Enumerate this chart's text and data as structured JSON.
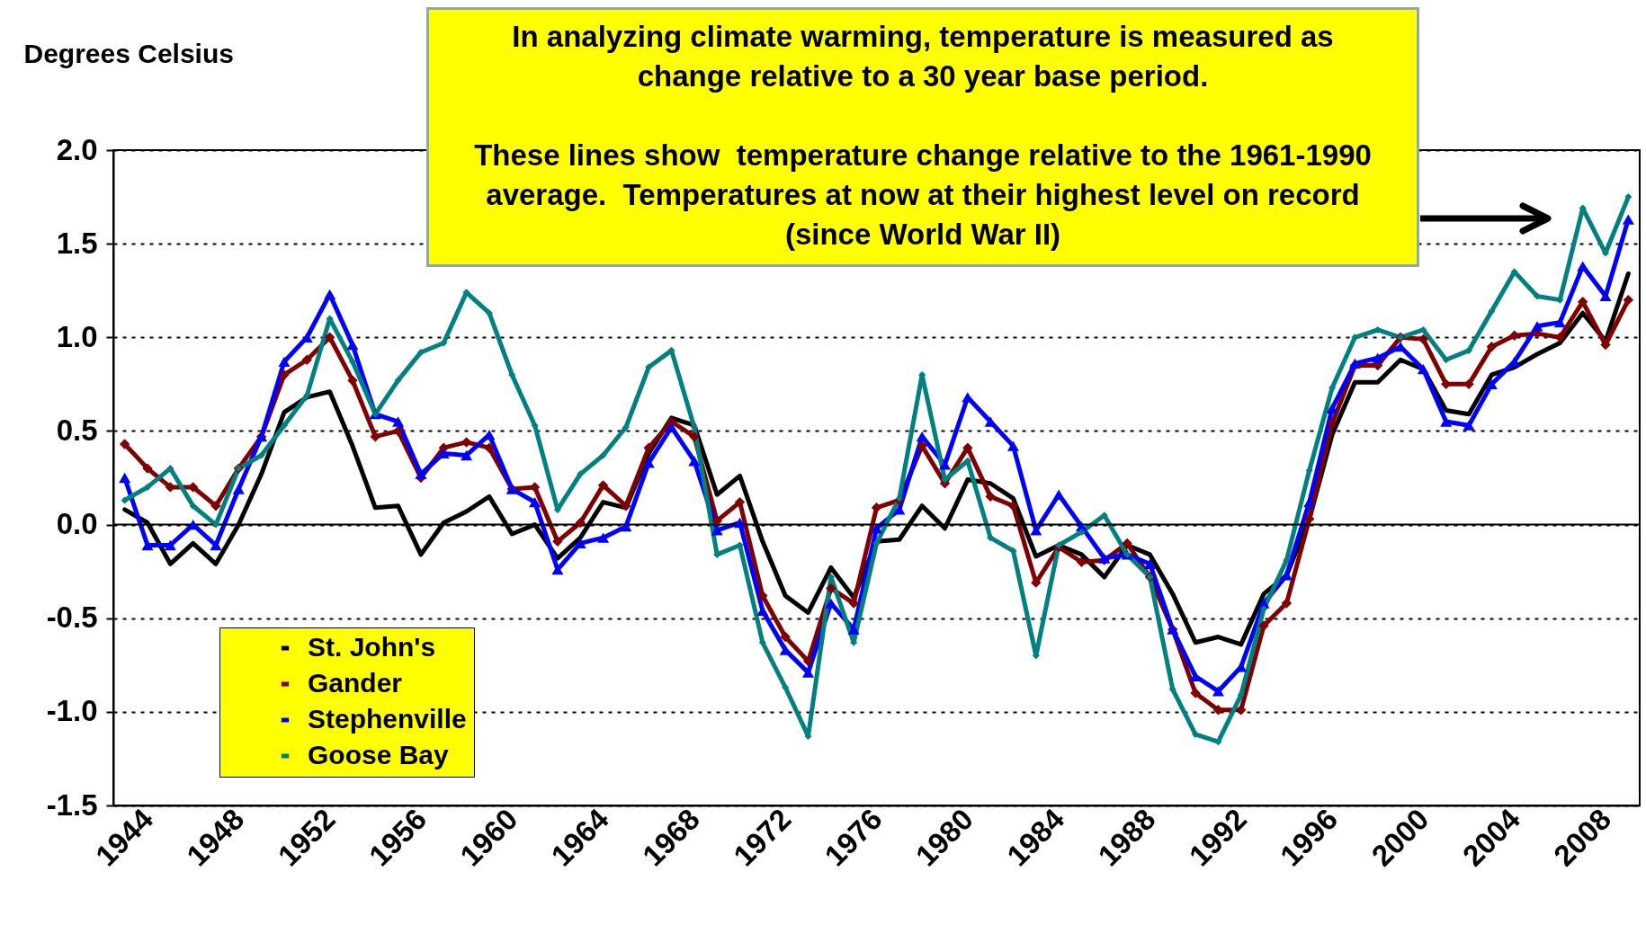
{
  "chart_data": {
    "type": "line",
    "ylabel": "Degrees Celsius",
    "annotations": [
      "In analyzing climate warming, temperature is measured as change relative to a 30 year base period.",
      "These lines show  temperature change relative to the 1961-1990 average.  Temperatures at now at their highest level on record (since World War II)"
    ],
    "categories": [
      "1944",
      null,
      null,
      null,
      "1948",
      null,
      null,
      null,
      "1952",
      null,
      null,
      null,
      "1956",
      null,
      null,
      null,
      "1960",
      null,
      null,
      null,
      "1964",
      null,
      null,
      null,
      "1968",
      null,
      null,
      null,
      "1972",
      null,
      null,
      null,
      "1976",
      null,
      null,
      null,
      "1980",
      null,
      null,
      null,
      "1984",
      null,
      null,
      null,
      "1988",
      null,
      null,
      null,
      "1992",
      null,
      null,
      null,
      "1996",
      null,
      null,
      null,
      "2000",
      null,
      null,
      null,
      "2004",
      null,
      null,
      null,
      "2008",
      null,
      null
    ],
    "series": [
      {
        "name": "St. John's",
        "color": "#000000",
        "marker": "none",
        "values": [
          0.08,
          0.01,
          -0.21,
          -0.1,
          -0.21,
          0,
          0.27,
          0.6,
          0.68,
          0.71,
          0.42,
          0.09,
          0.1,
          -0.16,
          0.01,
          0.07,
          0.15,
          -0.05,
          0,
          -0.18,
          -0.07,
          0.12,
          0.09,
          0.38,
          0.57,
          0.53,
          0.16,
          0.26,
          -0.09,
          -0.38,
          -0.47,
          -0.23,
          -0.39,
          -0.09,
          -0.08,
          0.1,
          -0.02,
          0.24,
          0.22,
          0.14,
          -0.17,
          -0.11,
          -0.16,
          -0.28,
          -0.11,
          -0.16,
          -0.37,
          -0.63,
          -0.6,
          -0.64,
          -0.37,
          -0.27,
          0.03,
          0.48,
          0.76,
          0.76,
          0.88,
          0.83,
          0.61,
          0.59,
          0.8,
          0.84,
          0.91,
          0.97,
          1.13,
          0.98,
          1.34
        ]
      },
      {
        "name": "Gander",
        "color": "#800000",
        "marker": "diamond",
        "values": [
          0.43,
          0.3,
          0.2,
          0.2,
          0.1,
          0.3,
          0.47,
          0.8,
          0.88,
          1.0,
          0.77,
          0.47,
          0.5,
          0.25,
          0.41,
          0.44,
          0.41,
          0.19,
          0.2,
          -0.09,
          0.01,
          0.21,
          0.1,
          0.41,
          0.55,
          0.47,
          0.02,
          0.12,
          -0.38,
          -0.6,
          -0.73,
          -0.34,
          -0.42,
          0.09,
          0.13,
          0.42,
          0.22,
          0.41,
          0.15,
          0.1,
          -0.31,
          -0.12,
          -0.2,
          -0.19,
          -0.1,
          -0.28,
          -0.56,
          -0.9,
          -0.99,
          -0.99,
          -0.54,
          -0.42,
          0.03,
          0.54,
          0.85,
          0.85,
          1.0,
          0.99,
          0.75,
          0.75,
          0.95,
          1.01,
          1.02,
          1.0,
          1.19,
          0.96,
          1.2
        ]
      },
      {
        "name": "Stephenville",
        "color": "#0000ff",
        "marker": "triangle",
        "values": [
          0.25,
          -0.11,
          -0.11,
          0.0,
          -0.11,
          0.19,
          0.47,
          0.87,
          1.0,
          1.23,
          0.96,
          0.59,
          0.55,
          0.27,
          0.38,
          0.37,
          0.48,
          0.19,
          0.12,
          -0.24,
          -0.1,
          -0.07,
          -0.01,
          0.33,
          0.52,
          0.34,
          -0.03,
          0.01,
          -0.46,
          -0.67,
          -0.79,
          -0.42,
          -0.56,
          -0.02,
          0.08,
          0.47,
          0.32,
          0.68,
          0.55,
          0.42,
          -0.03,
          0.16,
          -0.01,
          -0.18,
          -0.16,
          -0.21,
          -0.56,
          -0.81,
          -0.89,
          -0.76,
          -0.42,
          -0.27,
          0.12,
          0.62,
          0.86,
          0.89,
          0.95,
          0.83,
          0.55,
          0.53,
          0.75,
          0.87,
          1.06,
          1.08,
          1.38,
          1.22,
          1.63
        ]
      },
      {
        "name": "Goose Bay",
        "color": "#008080",
        "marker": "diamond",
        "values": [
          0.13,
          0.2,
          0.3,
          0.1,
          0.0,
          0.3,
          0.37,
          0.53,
          0.69,
          1.1,
          0.87,
          0.59,
          0.77,
          0.92,
          0.97,
          1.24,
          1.13,
          0.8,
          0.53,
          0.08,
          0.27,
          0.37,
          0.52,
          0.84,
          0.93,
          0.52,
          -0.16,
          -0.11,
          -0.63,
          -0.87,
          -1.13,
          -0.28,
          -0.63,
          -0.1,
          0.14,
          0.8,
          0.24,
          0.34,
          -0.07,
          -0.14,
          -0.7,
          -0.11,
          -0.04,
          0.05,
          -0.16,
          -0.28,
          -0.88,
          -1.12,
          -1.16,
          -0.91,
          -0.45,
          -0.19,
          0.29,
          0.73,
          1.0,
          1.04,
          1.0,
          1.04,
          0.88,
          0.93,
          1.14,
          1.35,
          1.22,
          1.2,
          1.69,
          1.45,
          1.75
        ]
      }
    ],
    "ylim": [
      -1.5,
      2.0
    ],
    "yticks": [
      {
        "value": -1.5,
        "label": "-1.5"
      },
      {
        "value": -1.0,
        "label": "-1.0"
      },
      {
        "value": -0.5,
        "label": "-0.5"
      },
      {
        "value": 0,
        "label": "0.0"
      },
      {
        "value": 0.5,
        "label": "0.5"
      },
      {
        "value": 1.0,
        "label": "1.0"
      },
      {
        "value": 1.5,
        "label": "1.5"
      },
      {
        "value": 2.0,
        "label": "2.0"
      }
    ],
    "ref_lines": [
      {
        "axis": "y",
        "value": 0,
        "color": "#000000"
      }
    ],
    "grid": "y",
    "legend": "bottom left",
    "line_style": "solid"
  }
}
